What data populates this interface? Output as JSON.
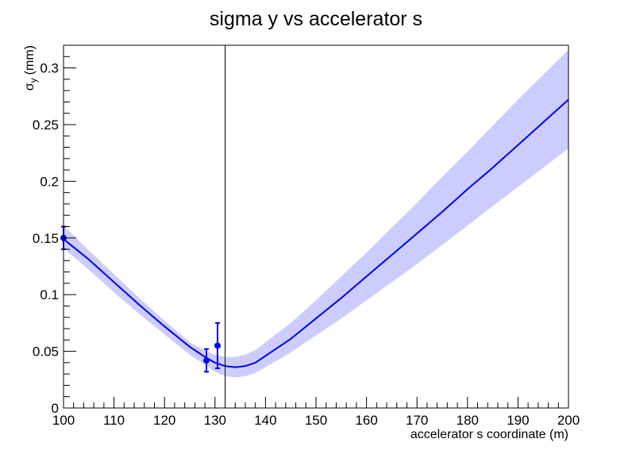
{
  "chart_data": {
    "type": "line",
    "title": "sigma y vs accelerator s",
    "xlabel": "accelerator s coordinate (m)",
    "ylabel": {
      "symbol": "σ",
      "subscript": "y",
      "unit": "(mm)"
    },
    "xlim": [
      100,
      200
    ],
    "ylim": [
      0,
      0.32
    ],
    "xticks": [
      100,
      110,
      120,
      130,
      140,
      150,
      160,
      170,
      180,
      190,
      200
    ],
    "xtick_labels": [
      "100",
      "110",
      "120",
      "130",
      "140",
      "150",
      "160",
      "170",
      "180",
      "190",
      "200"
    ],
    "yticks": [
      0,
      0.05,
      0.1,
      0.15,
      0.2,
      0.25,
      0.3
    ],
    "ytick_labels": [
      "0",
      "0.05",
      "0.1",
      "0.15",
      "0.2",
      "0.25",
      "0.3"
    ],
    "grid": false,
    "legend": "none",
    "vertical_line": {
      "x": 132,
      "color": "#000000"
    },
    "series": [
      {
        "kind": "fit-band",
        "color": "#ccccff",
        "x": [
          100,
          105,
          110,
          115,
          120,
          125,
          128,
          130,
          132,
          134,
          136,
          138,
          140,
          145,
          150,
          155,
          160,
          165,
          170,
          175,
          180,
          185,
          190,
          195,
          200
        ],
        "lower": [
          0.141,
          0.122,
          0.102,
          0.083,
          0.065,
          0.047,
          0.038,
          0.032,
          0.028,
          0.027,
          0.028,
          0.031,
          0.036,
          0.049,
          0.064,
          0.079,
          0.095,
          0.111,
          0.127,
          0.144,
          0.161,
          0.178,
          0.195,
          0.212,
          0.229
        ],
        "upper": [
          0.161,
          0.139,
          0.118,
          0.097,
          0.077,
          0.058,
          0.051,
          0.047,
          0.045,
          0.045,
          0.047,
          0.051,
          0.058,
          0.075,
          0.095,
          0.116,
          0.137,
          0.159,
          0.181,
          0.204,
          0.226,
          0.249,
          0.272,
          0.294,
          0.316
        ]
      },
      {
        "kind": "fit-line",
        "color": "#0000ee",
        "x": [
          100,
          105,
          110,
          115,
          120,
          125,
          128,
          130,
          132,
          134,
          136,
          138,
          140,
          145,
          150,
          155,
          160,
          165,
          170,
          175,
          180,
          185,
          190,
          195,
          200
        ],
        "y": [
          0.149,
          0.131,
          0.111,
          0.091,
          0.072,
          0.054,
          0.045,
          0.04,
          0.037,
          0.036,
          0.037,
          0.04,
          0.046,
          0.061,
          0.079,
          0.097,
          0.116,
          0.135,
          0.154,
          0.173,
          0.193,
          0.212,
          0.232,
          0.252,
          0.272
        ]
      },
      {
        "kind": "measurements",
        "color": "#0000ee",
        "points": [
          {
            "x": 100,
            "y": 0.15,
            "err": 0.01
          },
          {
            "x": 128.3,
            "y": 0.042,
            "err": 0.01
          },
          {
            "x": 130.5,
            "y": 0.055,
            "err": 0.02
          }
        ]
      }
    ]
  }
}
